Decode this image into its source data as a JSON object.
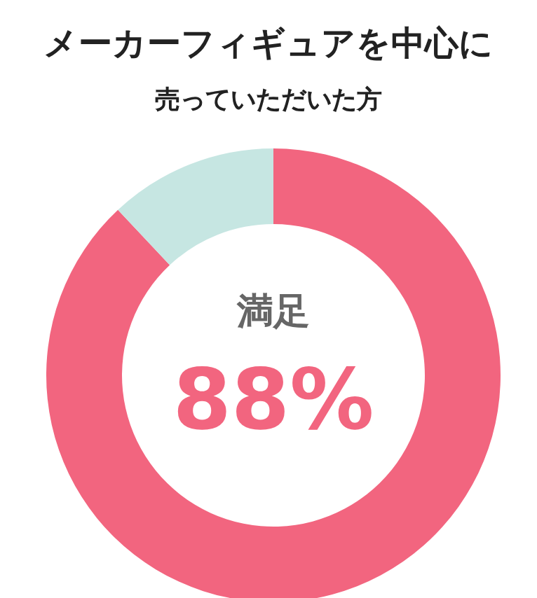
{
  "chart_data": {
    "type": "donut",
    "title": "メーカーフィギュアを中心に",
    "subtitle": "売っていただいた方",
    "categories": [
      "満足",
      null
    ],
    "values": [
      88,
      12
    ],
    "colors": [
      "#f2657f",
      "#c6e6e2"
    ],
    "value_labels": [
      "88%",
      null
    ]
  }
}
